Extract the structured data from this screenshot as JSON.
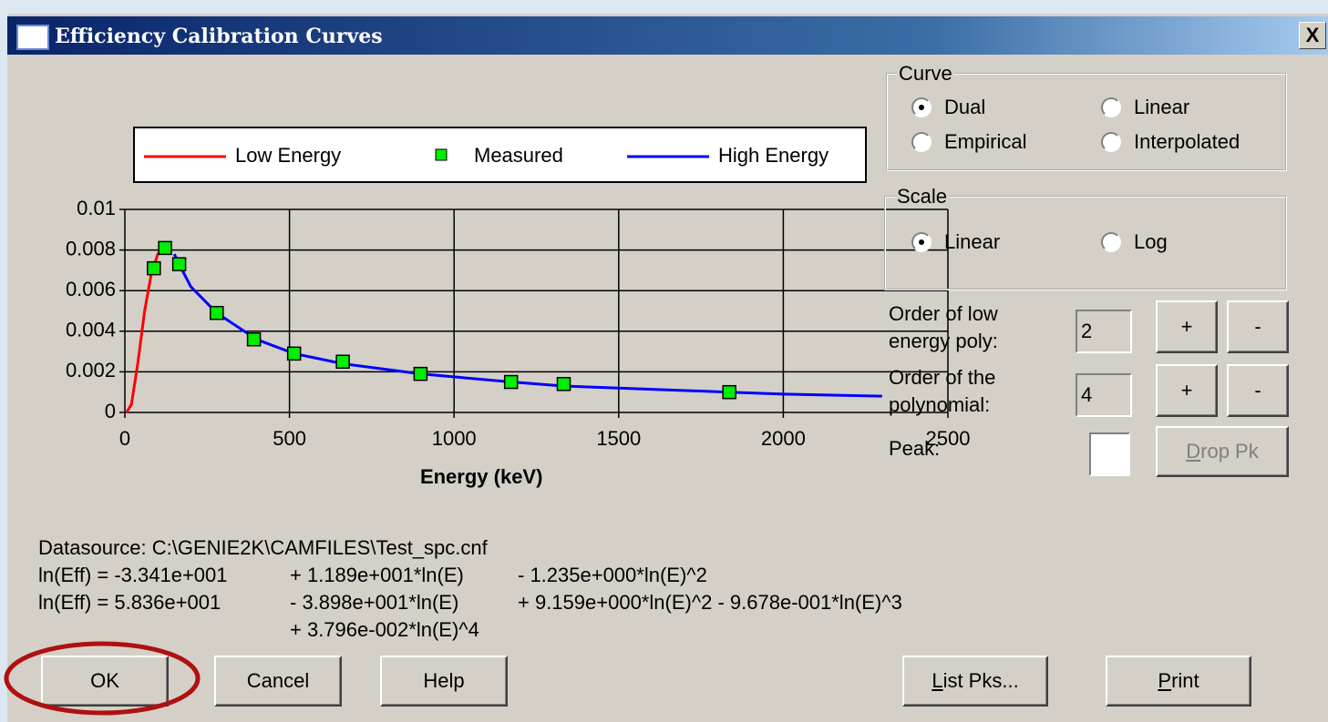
{
  "window": {
    "title": "Efficiency Calibration Curves",
    "close": "X"
  },
  "chart_data": {
    "type": "line",
    "xlabel": "Energy (keV)",
    "series": [
      {
        "name": "Low Energy",
        "color": "#ff0000",
        "x": [
          5,
          20,
          40,
          60,
          80,
          100,
          122,
          140
        ],
        "values": [
          0,
          0.0004,
          0.0025,
          0.005,
          0.0068,
          0.0078,
          0.0081,
          0.0079
        ]
      },
      {
        "name": "Measured",
        "color": "#00ee00",
        "marker": "square",
        "x": [
          88,
          122,
          165,
          279,
          392,
          514,
          662,
          898,
          1173,
          1333,
          1836
        ],
        "values": [
          0.0071,
          0.0081,
          0.0073,
          0.0049,
          0.0036,
          0.0029,
          0.0025,
          0.0019,
          0.0015,
          0.0014,
          0.001
        ]
      },
      {
        "name": "High Energy",
        "color": "#0000ff",
        "x": [
          150,
          165,
          200,
          279,
          400,
          514,
          662,
          898,
          1173,
          1333,
          1500,
          1836,
          2000,
          2300
        ],
        "values": [
          0.0078,
          0.0073,
          0.0062,
          0.0049,
          0.0036,
          0.0029,
          0.0024,
          0.0019,
          0.0015,
          0.0013,
          0.0012,
          0.001,
          0.0009,
          0.0008
        ]
      }
    ],
    "xlim": [
      0,
      2500
    ],
    "xticks": [
      0,
      500,
      1000,
      1500,
      2000,
      2500
    ],
    "ylim": [
      0,
      0.01
    ],
    "yticks": [
      0,
      0.002,
      0.004,
      0.006,
      0.008,
      0.01
    ],
    "grid": true
  },
  "curve": {
    "label": "Curve",
    "options": [
      "Dual",
      "Linear",
      "Empirical",
      "Interpolated"
    ],
    "selected": 0
  },
  "scale": {
    "label": "Scale",
    "options": [
      "Linear",
      "Log"
    ],
    "selected": 0
  },
  "low_order": {
    "label": "Order of low energy poly:",
    "value": "2",
    "plus": "+",
    "minus": "-"
  },
  "order": {
    "label": "Order of the polynomial:",
    "value": "4",
    "plus": "+",
    "minus": "-"
  },
  "peak": {
    "label": "Peak:",
    "button": "Drop Pk"
  },
  "info": [
    [
      "Datasource:  C:\\GENIE2K\\CAMFILES\\Test_spc.cnf"
    ],
    [
      "ln(Eff) = -3.341e+001",
      "+ 1.189e+001*ln(E)",
      "- 1.235e+000*ln(E)^2"
    ],
    [
      "ln(Eff) =  5.836e+001",
      "- 3.898e+001*ln(E)",
      "+ 9.159e+000*ln(E)^2 - 9.678e-001*ln(E)^3"
    ],
    [
      "",
      "+ 3.796e-002*ln(E)^4"
    ]
  ],
  "buttons": [
    "OK",
    "Cancel",
    "Help",
    "List Pks...",
    "Print"
  ]
}
